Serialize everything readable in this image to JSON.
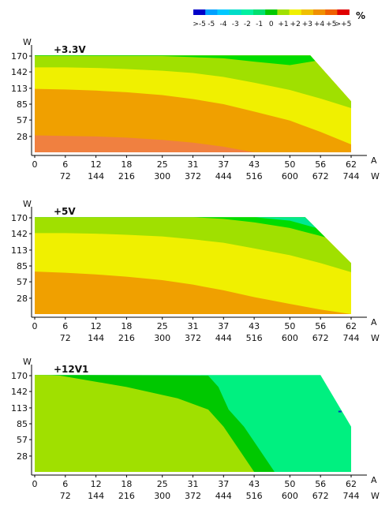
{
  "legend": {
    "unit": "%",
    "labels": [
      ">-5",
      "-5",
      "-4",
      "-3",
      "-2",
      "-1",
      "0",
      "+1",
      "+2",
      "+3",
      "+4",
      "+5",
      ">+5"
    ],
    "colors": [
      "#0000c8",
      "#00a0ff",
      "#00c8ff",
      "#00dcc8",
      "#00f0a0",
      "#00e070",
      "#00c800",
      "#a0e000",
      "#f0f000",
      "#f0c000",
      "#f09000",
      "#f06000",
      "#e00000"
    ]
  },
  "chart_data": [
    {
      "type": "heatmap",
      "title": "+3.3V",
      "ylabel": "W",
      "xlabel": "A",
      "xlabel2": "W",
      "xticks": [
        0,
        6,
        12,
        18,
        25,
        31,
        37,
        43,
        50,
        56,
        62
      ],
      "xticks2": [
        72,
        144,
        216,
        300,
        372,
        444,
        516,
        600,
        672,
        744
      ],
      "yticks": [
        28,
        57,
        85,
        113,
        142,
        170
      ],
      "xlim": [
        0,
        62
      ],
      "ylim": [
        0,
        170
      ],
      "zones": [
        {
          "label": "0",
          "color": "#00dc00",
          "bottom_y": [
            170,
            170,
            170,
            170,
            170,
            168,
            166,
            160,
            154
          ],
          "region": "upper band near top between 31 A and 55 A"
        },
        {
          "label": "+1",
          "color": "#a0e000",
          "bottom_y": [
            150,
            150,
            149,
            147,
            144,
            140,
            133,
            123,
            110,
            95,
            78
          ]
        },
        {
          "label": "+2",
          "color": "#f0f000",
          "bottom_y": [
            112,
            111,
            109,
            106,
            101,
            94,
            85,
            72,
            56,
            36,
            14
          ]
        },
        {
          "label": "+3",
          "color": "#f0a000",
          "bottom_y": [
            30,
            29,
            28,
            26,
            22,
            17,
            10,
            0,
            0,
            0,
            0
          ]
        },
        {
          "label": "+4",
          "color": "#f08040",
          "bottom_y": [
            0,
            0,
            0,
            0,
            0,
            0,
            0,
            0,
            0,
            0,
            0
          ]
        }
      ],
      "edge": {
        "full_to_x": 54,
        "end_x": 62,
        "end_y": 90
      }
    },
    {
      "type": "heatmap",
      "title": "+5V",
      "ylabel": "W",
      "xlabel": "A",
      "xlabel2": "W",
      "xticks": [
        0,
        6,
        12,
        18,
        25,
        31,
        37,
        43,
        50,
        56,
        62
      ],
      "xticks2": [
        72,
        144,
        216,
        300,
        372,
        444,
        516,
        600,
        672,
        744
      ],
      "yticks": [
        28,
        57,
        85,
        113,
        142,
        170
      ],
      "xlim": [
        0,
        62
      ],
      "ylim": [
        0,
        170
      ],
      "zones": [
        {
          "label": "-1",
          "color": "#00e890",
          "bottom_y": [
            171,
            171,
            171,
            171,
            171,
            171,
            171,
            171,
            165,
            150,
            135
          ]
        },
        {
          "label": "0",
          "color": "#00dc00",
          "bottom_y": [
            171,
            171,
            171,
            171,
            171,
            171,
            168,
            162,
            152,
            138,
            122
          ]
        },
        {
          "label": "+1",
          "color": "#a0e000",
          "bottom_y": [
            143,
            143,
            142,
            140,
            137,
            132,
            126,
            116,
            104,
            90,
            74
          ]
        },
        {
          "label": "+2",
          "color": "#f0f000",
          "bottom_y": [
            75,
            73,
            70,
            66,
            60,
            52,
            42,
            30,
            18,
            8,
            0
          ]
        },
        {
          "label": "+3",
          "color": "#f0a000",
          "bottom_y": [
            0,
            0,
            0,
            0,
            0,
            0,
            0,
            0,
            0,
            0,
            0
          ]
        }
      ],
      "edge": {
        "full_to_x": 53,
        "end_x": 62,
        "end_y": 90
      }
    },
    {
      "type": "heatmap",
      "title": "+12V1",
      "ylabel": "W",
      "xlabel": "A",
      "xlabel2": "W",
      "xticks": [
        0,
        6,
        12,
        18,
        25,
        31,
        37,
        43,
        50,
        56,
        62
      ],
      "xticks2": [
        72,
        144,
        216,
        300,
        372,
        444,
        516,
        600,
        672,
        744
      ],
      "yticks": [
        28,
        57,
        85,
        113,
        142,
        170
      ],
      "xlim": [
        0,
        62
      ],
      "ylim": [
        0,
        170
      ],
      "zones": [
        {
          "label": "+1",
          "color": "#a0e000",
          "region": "left / lower-left area",
          "right_boundary_x_at_y": [
            [
              170,
              5
            ],
            [
              150,
              18
            ],
            [
              130,
              28
            ],
            [
              110,
              34
            ],
            [
              80,
              37
            ],
            [
              40,
              40
            ],
            [
              0,
              43
            ]
          ]
        },
        {
          "label": "0",
          "color": "#00c800",
          "region": "diagonal band",
          "right_boundary_x_at_y": [
            [
              170,
              34
            ],
            [
              150,
              36
            ],
            [
              130,
              37
            ],
            [
              110,
              38
            ],
            [
              80,
              41
            ],
            [
              40,
              44
            ],
            [
              0,
              47
            ]
          ]
        },
        {
          "label": "-1",
          "color": "#00f080",
          "region": "right area"
        }
      ],
      "edge": {
        "full_to_x": 56,
        "end_x": 62,
        "end_y": 80
      }
    }
  ]
}
